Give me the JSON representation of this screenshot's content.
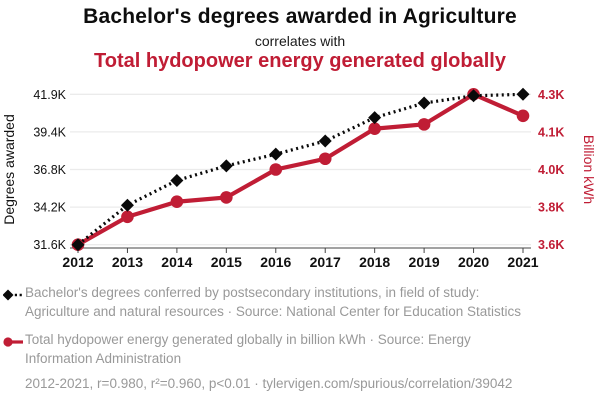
{
  "header": {
    "title": "Bachelor's degrees awarded in Agriculture",
    "connector": "correlates with",
    "subtitle": "Total hydopower energy generated globally"
  },
  "colors": {
    "series1": "#0a0a0a",
    "series2": "#c01d35",
    "grid": "#ebebeb",
    "axis": "#444444",
    "tick_text": "#111111",
    "legend_text": "#999999"
  },
  "chart_data": {
    "type": "line",
    "x": [
      2012,
      2013,
      2014,
      2015,
      2016,
      2017,
      2018,
      2019,
      2020,
      2021
    ],
    "left_axis": {
      "label": "Degrees awarded",
      "min": 31.6,
      "max": 41.9,
      "ticks": [
        "31.6K",
        "34.2K",
        "36.8K",
        "39.4K",
        "41.9K"
      ]
    },
    "right_axis": {
      "label": "Billion kWh",
      "min": 3.6,
      "max": 4.3,
      "ticks": [
        "3.6K",
        "3.8K",
        "4.0K",
        "4.1K",
        "4.3K"
      ]
    },
    "series": [
      {
        "id": "degrees",
        "name": "Bachelor's degrees conferred by postsecondary institutions, in field of study: Agriculture and natural resources",
        "axis": "left",
        "marker": "diamond",
        "line": "dotted",
        "color_key": "series1",
        "values": [
          31.6,
          34.3,
          36.0,
          37.0,
          37.8,
          38.7,
          40.3,
          41.3,
          41.8,
          41.9
        ]
      },
      {
        "id": "hydropower",
        "name": "Total hydopower energy generated globally",
        "axis": "right",
        "marker": "circle",
        "line": "solid",
        "color_key": "series2",
        "values": [
          3.6,
          3.73,
          3.8,
          3.82,
          3.95,
          4.0,
          4.14,
          4.16,
          4.3,
          4.2
        ]
      }
    ],
    "grid": true,
    "legend_position": "bottom"
  },
  "legend": {
    "entries": [
      {
        "text": "Bachelor's degrees conferred by postsecondary institutions, in field of study: Agriculture and natural resources · Source: National Center for Education Statistics"
      },
      {
        "text": "Total hydopower energy generated globally in billion kWh · Source: Energy Information Administration"
      }
    ]
  },
  "footer": {
    "text": "2012-2021, r=0.980, r²=0.960, p<0.01 · tylervigen.com/spurious/correlation/39042"
  }
}
